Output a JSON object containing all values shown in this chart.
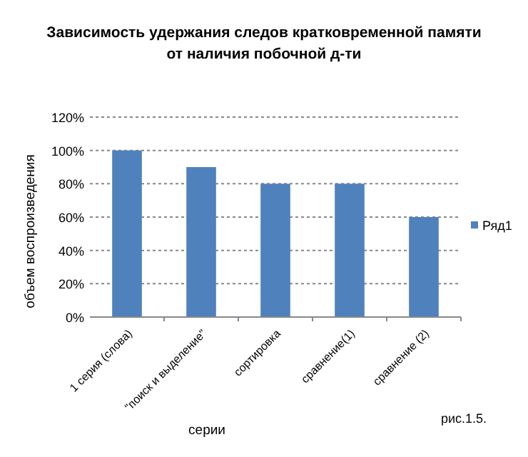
{
  "chart_data": {
    "type": "bar",
    "title": "Зависимость удержания  следов кратковременной памяти\nот наличия побочной д-ти",
    "xlabel": "серии",
    "ylabel": "объем воспроизведения",
    "categories": [
      "1 серия (слова)",
      "\"поиск и выделение\"",
      "сортировка",
      "сравнение(1)",
      "сравнение (2)"
    ],
    "series": [
      {
        "name": "Ряд1",
        "color": "#4f81bd",
        "values": [
          100,
          90,
          80,
          80,
          60
        ]
      }
    ],
    "ylim": [
      0,
      120
    ],
    "yticks": [
      {
        "value": 0,
        "label": "0%"
      },
      {
        "value": 20,
        "label": "20%"
      },
      {
        "value": 40,
        "label": "40%"
      },
      {
        "value": 60,
        "label": "60%"
      },
      {
        "value": 80,
        "label": "80%"
      },
      {
        "value": 100,
        "label": "100%"
      },
      {
        "value": 120,
        "label": "120%"
      }
    ],
    "grid": "y",
    "legend": "right",
    "annotations": [
      "рис.1.5."
    ]
  }
}
